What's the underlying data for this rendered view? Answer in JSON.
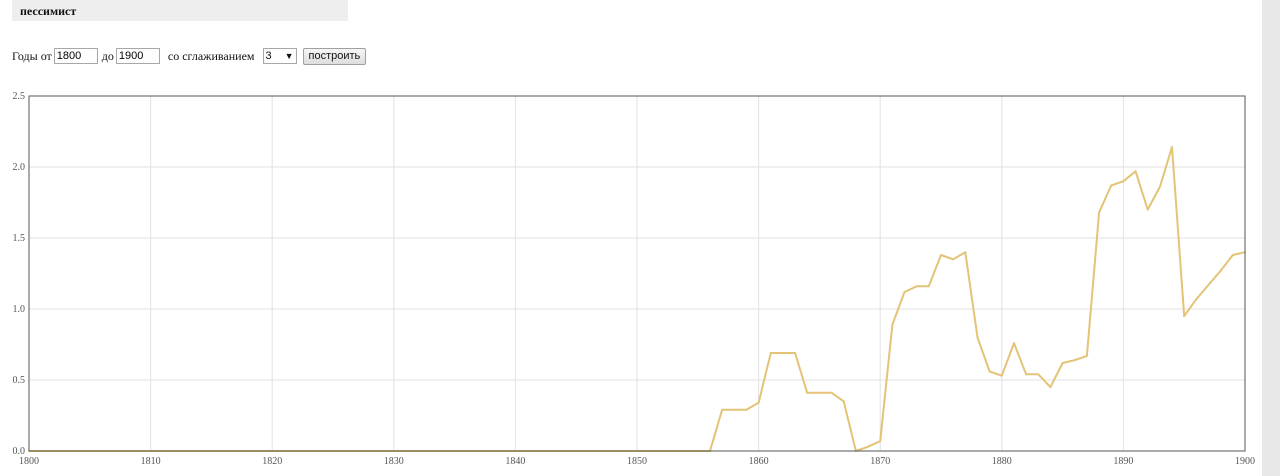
{
  "header": {
    "query": "пессимист"
  },
  "controls": {
    "years_from_label": "Годы от",
    "year_from": "1800",
    "to_label": "до",
    "year_to": "1900",
    "smoothing_label": "со сглаживанием",
    "smoothing_value": "3",
    "build_label": "построить"
  },
  "chart_data": {
    "type": "line",
    "xlim": [
      1800,
      1900
    ],
    "ylim": [
      0,
      2.5
    ],
    "grid": true,
    "line_color": "#e3c476",
    "x_ticks": [
      "1800",
      "1810",
      "1820",
      "1830",
      "1840",
      "1850",
      "1860",
      "1870",
      "1880",
      "1890",
      "1900"
    ],
    "y_ticks": [
      "0.0",
      "0.5",
      "1.0",
      "1.5",
      "2.0",
      "2.5"
    ],
    "x": [
      1800,
      1856,
      1857,
      1858,
      1859,
      1860,
      1861,
      1862,
      1863,
      1864,
      1865,
      1866,
      1867,
      1868,
      1869,
      1870,
      1871,
      1872,
      1873,
      1874,
      1875,
      1876,
      1877,
      1878,
      1879,
      1880,
      1881,
      1882,
      1883,
      1884,
      1885,
      1886,
      1887,
      1888,
      1889,
      1890,
      1891,
      1892,
      1893,
      1894,
      1895,
      1896,
      1897,
      1898,
      1899,
      1900
    ],
    "values": [
      0,
      0,
      0.29,
      0.29,
      0.29,
      0.34,
      0.69,
      0.69,
      0.69,
      0.41,
      0.41,
      0.41,
      0.35,
      0,
      0.03,
      0.07,
      0.89,
      1.12,
      1.16,
      1.16,
      1.38,
      1.35,
      1.4,
      0.8,
      0.56,
      0.53,
      0.76,
      0.54,
      0.54,
      0.45,
      0.62,
      0.64,
      0.67,
      1.68,
      1.87,
      1.9,
      1.97,
      1.7,
      1.86,
      2.14,
      0.95,
      1.07,
      1.17,
      1.27,
      1.38,
      1.4
    ]
  }
}
